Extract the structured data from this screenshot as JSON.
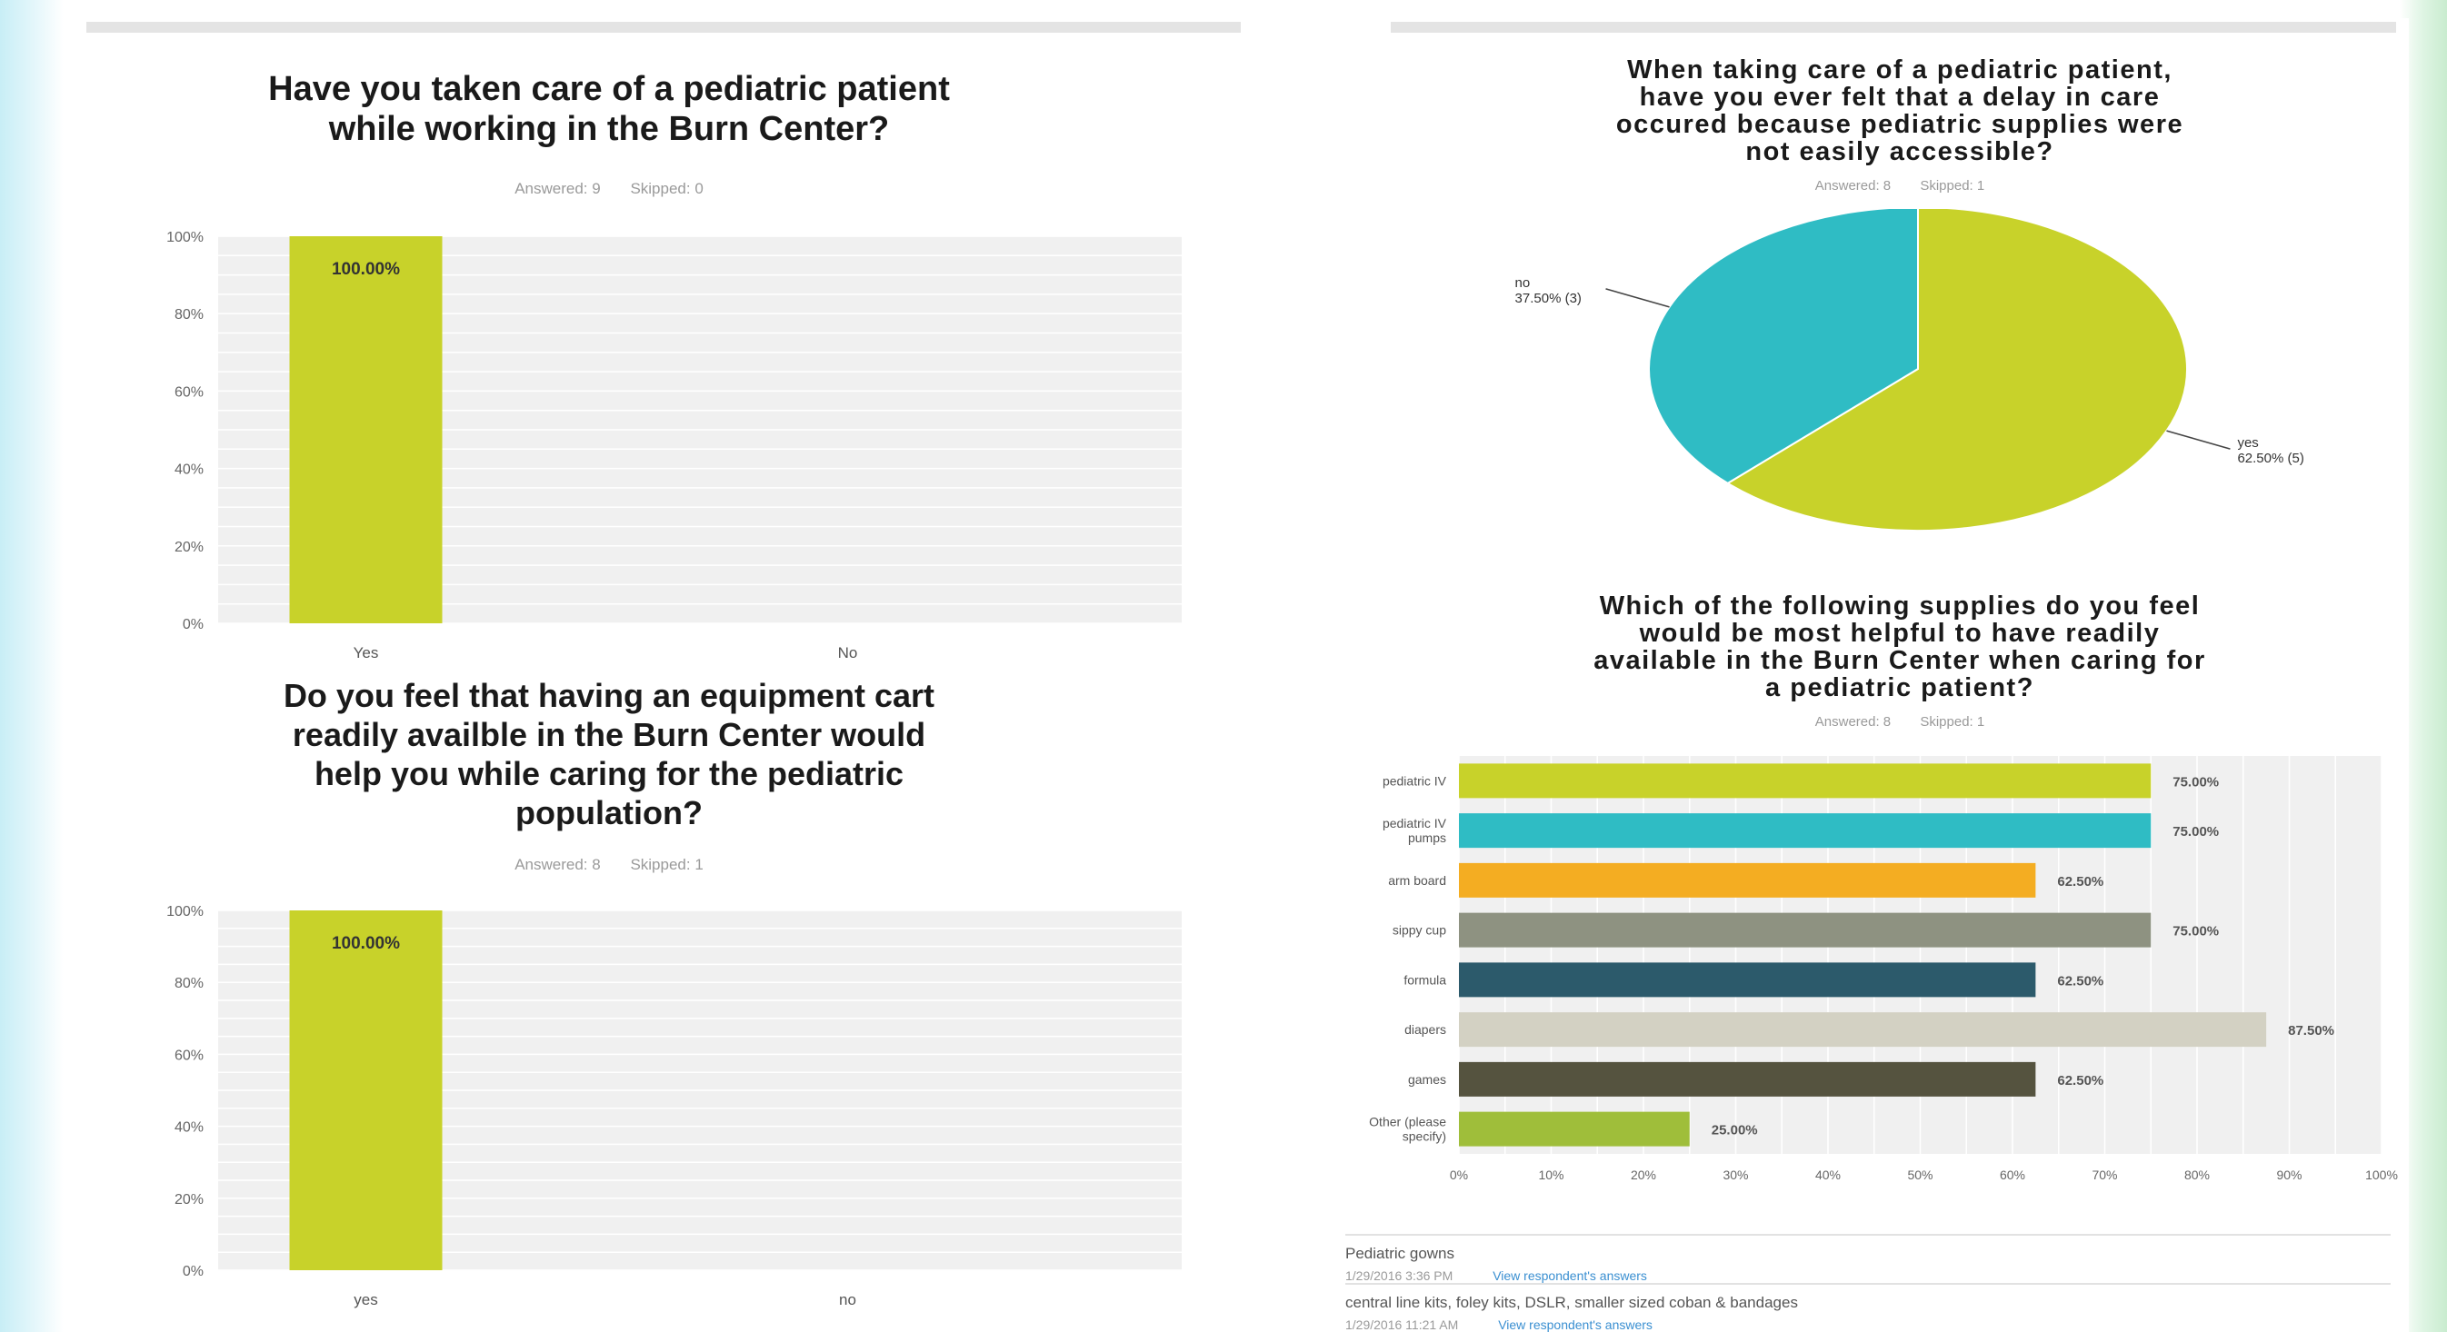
{
  "q1": {
    "title_line1": "Have you taken care of a pediatric patient",
    "title_line2": "while working in the Burn Center?",
    "answered": "Answered: 9",
    "skipped": "Skipped: 0"
  },
  "q2": {
    "title_line1": "Do you feel that having an equipment cart",
    "title_line2": "readily availble in the Burn Center would",
    "title_line3": "help you while caring for the pediatric",
    "title_line4": "population?",
    "answered": "Answered: 8",
    "skipped": "Skipped: 1"
  },
  "q3": {
    "title_line1": "When taking care of a pediatric patient,",
    "title_line2": "have you ever felt that a delay in care",
    "title_line3": "occured because pediatric supplies were",
    "title_line4": "not easily accessible?",
    "answered": "Answered: 8",
    "skipped": "Skipped: 1"
  },
  "q4": {
    "title_line1": "Which of the following supplies do you feel",
    "title_line2": "would be most helpful to have readily",
    "title_line3": "available in the Burn Center when caring for",
    "title_line4": "a pediatric patient?",
    "answered": "Answered: 8",
    "skipped": "Skipped: 1"
  },
  "responses": [
    {
      "text": "Pediatric gowns",
      "date": "1/29/2016 3:36 PM",
      "link": "View respondent's answers"
    },
    {
      "text": "central line kits, foley kits, DSLR, smaller sized coban & bandages",
      "date": "1/29/2016 11:21 AM",
      "link": "View respondent's answers"
    }
  ],
  "chart_data": [
    {
      "type": "bar",
      "categories": [
        "Yes",
        "No"
      ],
      "values": [
        100,
        0
      ],
      "data_labels": [
        "100.00%",
        ""
      ],
      "ylim": [
        0,
        100
      ],
      "yticks": [
        "0%",
        "20%",
        "40%",
        "60%",
        "80%",
        "100%"
      ],
      "color": "#c8d22a",
      "grid": true
    },
    {
      "type": "bar",
      "categories": [
        "yes",
        "no"
      ],
      "values": [
        100,
        0
      ],
      "data_labels": [
        "100.00%",
        ""
      ],
      "ylim": [
        0,
        100
      ],
      "yticks": [
        "0%",
        "20%",
        "40%",
        "60%",
        "80%",
        "100%"
      ],
      "color": "#c8d22a",
      "grid": true
    },
    {
      "type": "pie",
      "slices": [
        {
          "label": "yes",
          "value": 62.5,
          "text": "62.50% (5)",
          "color": "#c8d22a"
        },
        {
          "label": "no",
          "value": 37.5,
          "text": "37.50% (3)",
          "color": "#2fbcc4"
        }
      ]
    },
    {
      "type": "bar",
      "orientation": "horizontal",
      "categories": [
        "pediatric IV",
        "pediatric IV pumps",
        "arm board",
        "sippy cup",
        "formula",
        "diapers",
        "games",
        "Other (please specify)"
      ],
      "category_lines": [
        [
          "pediatric IV"
        ],
        [
          "pediatric IV",
          "pumps"
        ],
        [
          "arm board"
        ],
        [
          "sippy cup"
        ],
        [
          "formula"
        ],
        [
          "diapers"
        ],
        [
          "games"
        ],
        [
          "Other (please",
          "specify)"
        ]
      ],
      "values": [
        75,
        75,
        62.5,
        75,
        62.5,
        87.5,
        62.5,
        25
      ],
      "data_labels": [
        "75.00%",
        "75.00%",
        "62.50%",
        "75.00%",
        "62.50%",
        "87.50%",
        "62.50%",
        "25.00%"
      ],
      "colors": [
        "#c8d22a",
        "#2fbcc4",
        "#f4ad22",
        "#8e9281",
        "#2c5a6b",
        "#d3d1c3",
        "#55533f",
        "#9fbe3a"
      ],
      "xlim": [
        0,
        100
      ],
      "xticks": [
        "0%",
        "10%",
        "20%",
        "30%",
        "40%",
        "50%",
        "60%",
        "70%",
        "80%",
        "90%",
        "100%"
      ],
      "grid": true
    }
  ]
}
